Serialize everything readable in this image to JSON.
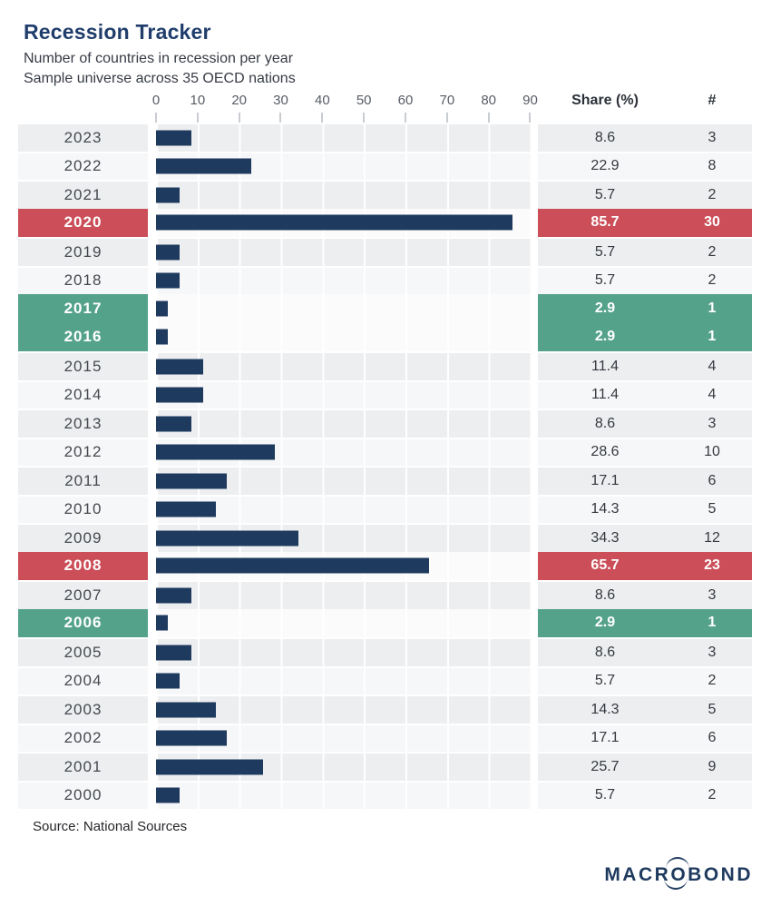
{
  "header": {
    "title": "Recession Tracker",
    "subtitle_line1": "Number of countries in recession per year",
    "subtitle_line2": "Sample universe across 35 OECD nations"
  },
  "table_header": {
    "share_label": "Share (%)",
    "count_label": "#"
  },
  "chart_data": {
    "type": "bar",
    "orientation": "horizontal",
    "title": "Recession Tracker",
    "subtitle": "Number of countries in recession per year — Sample universe across 35 OECD nations",
    "xlabel": "Share (%)",
    "xlim": [
      0,
      90
    ],
    "axis_ticks": [
      0,
      10,
      20,
      30,
      40,
      50,
      60,
      70,
      80,
      90
    ],
    "grid": true,
    "categories": [
      "2023",
      "2022",
      "2021",
      "2020",
      "2019",
      "2018",
      "2017",
      "2016",
      "2015",
      "2014",
      "2013",
      "2012",
      "2011",
      "2010",
      "2009",
      "2008",
      "2007",
      "2006",
      "2005",
      "2004",
      "2003",
      "2002",
      "2001",
      "2000"
    ],
    "series": [
      {
        "name": "Share (%)",
        "values": [
          8.6,
          22.9,
          5.7,
          85.7,
          5.7,
          5.7,
          2.9,
          2.9,
          11.4,
          11.4,
          8.6,
          28.6,
          17.1,
          14.3,
          34.3,
          65.7,
          8.6,
          2.9,
          8.6,
          5.7,
          14.3,
          17.1,
          25.7,
          5.7
        ]
      },
      {
        "name": "# of countries",
        "values": [
          3,
          8,
          2,
          30,
          2,
          2,
          1,
          1,
          4,
          4,
          3,
          10,
          6,
          5,
          12,
          23,
          3,
          1,
          3,
          2,
          5,
          6,
          9,
          2
        ]
      }
    ],
    "highlights": {
      "2020": "red",
      "2008": "red",
      "2017": "green",
      "2016": "green",
      "2006": "green"
    }
  },
  "source": "Source: National Sources",
  "logo": {
    "part1": "MACR",
    "o": "O",
    "part2": "BOND"
  },
  "colors": {
    "navy_bar": "#1e3a5e",
    "navy_title": "#203d6b",
    "red": "#cb4e58",
    "green": "#55a28b",
    "row_dark": "#eceef0",
    "row_light": "#f6f7f8"
  }
}
